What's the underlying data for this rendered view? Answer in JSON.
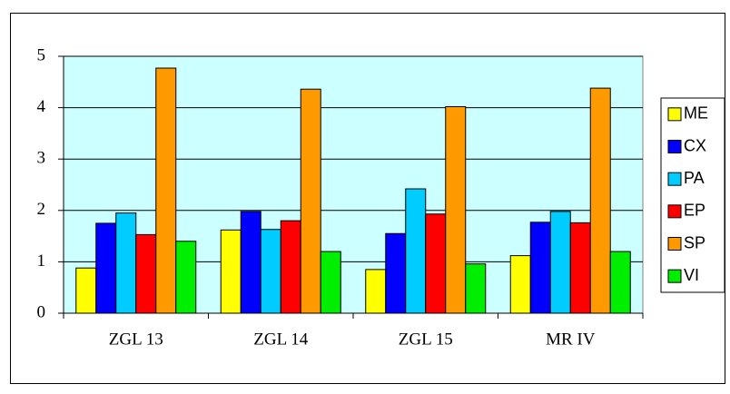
{
  "chart_data": {
    "type": "bar",
    "categories": [
      "ZGL 13",
      "ZGL 14",
      "ZGL 15",
      "MR IV"
    ],
    "series": [
      {
        "name": "ME",
        "color": "#ffff00",
        "values": [
          0.88,
          1.62,
          0.85,
          1.12
        ]
      },
      {
        "name": "CX",
        "color": "#0000ff",
        "values": [
          1.75,
          1.98,
          1.55,
          1.77
        ]
      },
      {
        "name": "PA",
        "color": "#00ccff",
        "values": [
          1.95,
          1.63,
          2.42,
          1.98
        ]
      },
      {
        "name": "EP",
        "color": "#ff0000",
        "values": [
          1.53,
          1.8,
          1.93,
          1.76
        ]
      },
      {
        "name": "SP",
        "color": "#ff9900",
        "values": [
          4.77,
          4.36,
          4.02,
          4.38
        ]
      },
      {
        "name": "VI",
        "color": "#00ee00",
        "values": [
          1.4,
          1.2,
          0.96,
          1.2
        ]
      }
    ],
    "ylim": [
      0,
      5
    ],
    "yticks": [
      0,
      1,
      2,
      3,
      4,
      5
    ],
    "grid": true,
    "legend": "right",
    "plot_background": "#ccffff"
  }
}
